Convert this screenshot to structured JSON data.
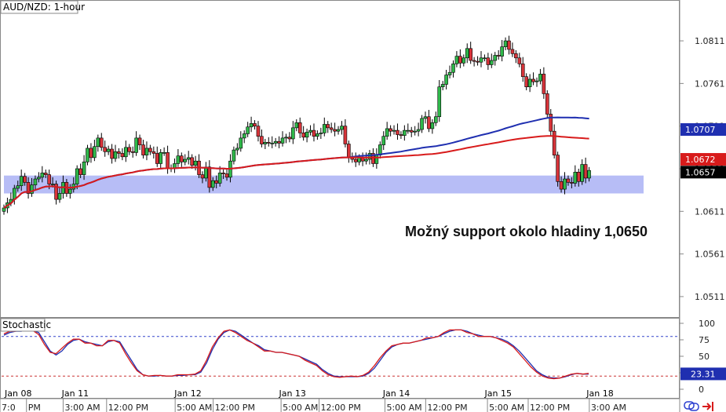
{
  "chart_data": [
    {
      "type": "candlestick",
      "title": "AUD/NZD: 1-hour",
      "ylim": [
        1.0487,
        1.0858
      ],
      "y_ticks": [
        1.0811,
        1.0761,
        1.0711,
        1.0661,
        1.0611,
        1.0561,
        1.0511
      ],
      "y_tick_labels": [
        "1.0811",
        "1.0761",
        "1.0711",
        "1.0661",
        "1.0611",
        "1.0561",
        "1.0511"
      ],
      "grid": false,
      "price_labels": [
        {
          "label": "1.0707",
          "value": 1.0707,
          "color": "#1f2fb0"
        },
        {
          "label": "1.0672",
          "value": 1.0672,
          "color": "#d81b1b"
        },
        {
          "label": "1.0657",
          "value": 1.0657,
          "color": "#000000"
        }
      ],
      "support_zone": {
        "low": 1.0632,
        "high": 1.0653,
        "color": "#aab2f5"
      },
      "annotation": "Možný support okolo hladiny 1,0650",
      "x_axis_note": "hourly candles; x = candle index",
      "candles_close": [
        1.0615,
        1.0621,
        1.0625,
        1.0638,
        1.0641,
        1.0652,
        1.0645,
        1.0632,
        1.0642,
        1.0649,
        1.0651,
        1.0656,
        1.0654,
        1.0643,
        1.0643,
        1.0625,
        1.0632,
        1.0645,
        1.0632,
        1.0637,
        1.0643,
        1.0661,
        1.0654,
        1.0669,
        1.0685,
        1.0674,
        1.0687,
        1.0697,
        1.0686,
        1.0681,
        1.0684,
        1.0673,
        1.0681,
        1.0679,
        1.0675,
        1.0686,
        1.0681,
        1.068,
        1.0697,
        1.0689,
        1.0677,
        1.0685,
        1.0681,
        1.0679,
        1.0667,
        1.068,
        1.068,
        1.0661,
        1.0662,
        1.0667,
        1.0676,
        1.0669,
        1.0672,
        1.0674,
        1.0665,
        1.067,
        1.0654,
        1.065,
        1.0663,
        1.0639,
        1.0647,
        1.0644,
        1.0656,
        1.0655,
        1.0651,
        1.067,
        1.0683,
        1.0685,
        1.0697,
        1.0702,
        1.071,
        1.0714,
        1.0711,
        1.0699,
        1.069,
        1.0692,
        1.0691,
        1.0691,
        1.0693,
        1.0691,
        1.0697,
        1.0698,
        1.0696,
        1.0709,
        1.0715,
        1.0703,
        1.0698,
        1.0704,
        1.0706,
        1.0699,
        1.0702,
        1.0703,
        1.0713,
        1.0709,
        1.0707,
        1.0705,
        1.0707,
        1.0711,
        1.069,
        1.0674,
        1.0672,
        1.0669,
        1.0674,
        1.067,
        1.0672,
        1.0679,
        1.0667,
        1.0677,
        1.0689,
        1.0699,
        1.0708,
        1.0705,
        1.0706,
        1.0701,
        1.07,
        1.0706,
        1.0706,
        1.0704,
        1.0705,
        1.0707,
        1.072,
        1.0722,
        1.0708,
        1.0715,
        1.0722,
        1.0757,
        1.076,
        1.0771,
        1.0774,
        1.0784,
        1.0793,
        1.0785,
        1.0791,
        1.0802,
        1.0788,
        1.0787,
        1.0786,
        1.0791,
        1.0791,
        1.0783,
        1.0788,
        1.0794,
        1.0793,
        1.0804,
        1.0811,
        1.0801,
        1.0796,
        1.0791,
        1.0784,
        1.0769,
        1.0757,
        1.0766,
        1.0763,
        1.0764,
        1.0772,
        1.0749,
        1.0725,
        1.0705,
        1.0677,
        1.0646,
        1.0637,
        1.0649,
        1.0645,
        1.0644,
        1.0657,
        1.0646,
        1.0666,
        1.065,
        1.0659
      ]
    },
    {
      "type": "line",
      "title": "Stochastic",
      "ylim": [
        0,
        100
      ],
      "y_ticks": [
        100,
        75,
        50,
        25,
        0
      ],
      "y_tick_labels": [
        "100",
        "75",
        "50",
        "25",
        "0"
      ],
      "levels": [
        {
          "value": 80,
          "color": "#3344cc"
        },
        {
          "value": 20,
          "color": "#cc3333"
        }
      ],
      "value_label": "23.31",
      "series": [
        {
          "color": "#1f2fb0",
          "values": [
            82,
            86,
            88,
            88,
            90,
            89,
            86,
            72,
            58,
            52,
            58,
            68,
            74,
            76,
            72,
            70,
            68,
            66,
            72,
            74,
            72,
            58,
            44,
            30,
            22,
            20,
            20,
            21,
            20,
            20,
            21,
            21,
            22,
            22,
            26,
            40,
            60,
            76,
            86,
            90,
            88,
            82,
            76,
            70,
            66,
            60,
            58,
            56,
            56,
            54,
            52,
            50,
            46,
            42,
            38,
            30,
            24,
            20,
            19,
            19,
            19,
            19,
            20,
            24,
            32,
            44,
            56,
            64,
            68,
            70,
            70,
            72,
            74,
            76,
            78,
            80,
            84,
            88,
            90,
            90,
            88,
            84,
            82,
            80,
            80,
            78,
            76,
            72,
            66,
            58,
            48,
            38,
            28,
            22,
            18,
            17,
            17,
            19,
            22,
            24,
            23,
            23
          ]
        },
        {
          "color": "#d81b1b",
          "values": [
            84,
            88,
            88,
            90,
            90,
            89,
            83,
            68,
            56,
            54,
            62,
            70,
            76,
            76,
            70,
            70,
            66,
            66,
            74,
            74,
            70,
            54,
            40,
            28,
            22,
            20,
            21,
            21,
            20,
            20,
            22,
            22,
            22,
            23,
            28,
            44,
            64,
            78,
            88,
            90,
            86,
            80,
            74,
            70,
            64,
            58,
            58,
            56,
            56,
            54,
            52,
            50,
            44,
            40,
            36,
            28,
            22,
            19,
            18,
            19,
            20,
            19,
            21,
            26,
            36,
            48,
            58,
            66,
            68,
            70,
            70,
            72,
            74,
            78,
            78,
            80,
            86,
            90,
            90,
            90,
            86,
            84,
            80,
            80,
            80,
            78,
            74,
            70,
            64,
            54,
            44,
            34,
            26,
            20,
            17,
            16,
            17,
            20,
            23,
            24,
            23,
            24
          ]
        }
      ]
    }
  ],
  "x_axis": {
    "dates": [
      {
        "label": "Jan 08",
        "pos": 0.0
      },
      {
        "label": "Jan 11",
        "pos": 0.084
      },
      {
        "label": "Jan 12",
        "pos": 0.25
      },
      {
        "label": "Jan 13",
        "pos": 0.404
      },
      {
        "label": "Jan 14",
        "pos": 0.557
      },
      {
        "label": "Jan 15",
        "pos": 0.707
      },
      {
        "label": "Jan 18",
        "pos": 0.857
      }
    ],
    "times": [
      {
        "label": "7:0",
        "pos": 0.0
      },
      {
        "label": "PM",
        "pos": 0.039
      },
      {
        "label": "3:00 AM",
        "pos": 0.093
      },
      {
        "label": "12:00 PM",
        "pos": 0.157
      },
      {
        "label": "5:00 AM",
        "pos": 0.258
      },
      {
        "label": "12:00 PM",
        "pos": 0.314
      },
      {
        "label": "5:00 AM",
        "pos": 0.414
      },
      {
        "label": "12:00 PM",
        "pos": 0.47
      },
      {
        "label": "5:00 AM",
        "pos": 0.567
      },
      {
        "label": "12:00 PM",
        "pos": 0.627
      },
      {
        "label": "5:00 AM",
        "pos": 0.718
      },
      {
        "label": "12:00 PM",
        "pos": 0.778
      },
      {
        "label": "3:00 AM",
        "pos": 0.868
      }
    ]
  },
  "icons": [
    "link-icon",
    "arrow-right-to-bar-icon"
  ]
}
